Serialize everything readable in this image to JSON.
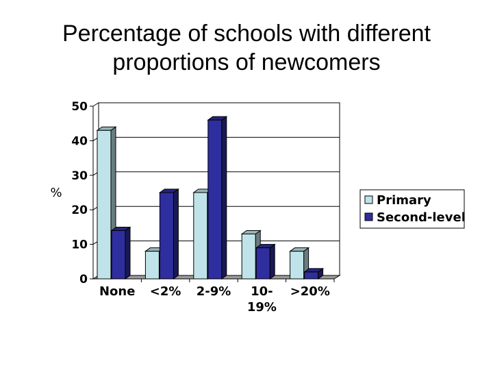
{
  "chart_data": {
    "type": "bar",
    "title": [
      "Percentage of schools with different",
      "proportions of newcomers"
    ],
    "ylabel": "%",
    "xlabel": "",
    "ylim": [
      0,
      50
    ],
    "yticks": [
      "0",
      "10",
      "20",
      "30",
      "40",
      "50"
    ],
    "categories": [
      [
        "None"
      ],
      [
        "<2%"
      ],
      [
        "2-9%"
      ],
      [
        "10-",
        "19%"
      ],
      [
        ">20%"
      ]
    ],
    "series": [
      {
        "name": "Primary",
        "values": [
          43,
          8,
          25,
          13,
          8
        ],
        "color": "#bfe3e8"
      },
      {
        "name": "Second-level",
        "values": [
          14,
          25,
          46,
          9,
          2
        ],
        "color": "#2e2e9e"
      }
    ],
    "grid": true,
    "legend": "right"
  }
}
